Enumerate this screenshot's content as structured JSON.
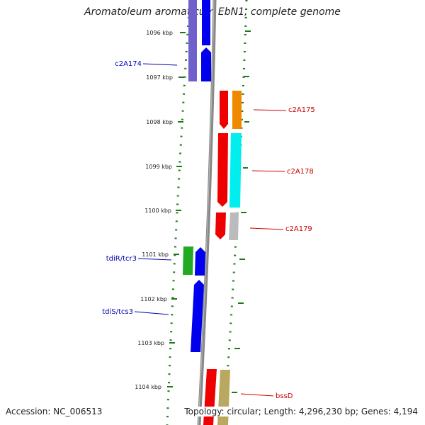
{
  "title": "Aromatoleum aromaticum EbN1, complete genome",
  "footer": {
    "accession": "Accession: NC_006513",
    "topology": "Topology: circular; Length: 4,296,230 bp; Genes: 4,194"
  },
  "ticks": [
    {
      "label": "1096 kbp"
    },
    {
      "label": "1097 kbp"
    },
    {
      "label": "1098 kbp"
    },
    {
      "label": "1099 kbp"
    },
    {
      "label": "1100 kbp"
    },
    {
      "label": "1101 kbp"
    },
    {
      "label": "1102 kbp"
    },
    {
      "label": "1103 kbp"
    },
    {
      "label": "1104 kbp"
    }
  ],
  "genes": [
    {
      "label": "c2A174",
      "color": "#0000cc"
    },
    {
      "label": "c2A175",
      "color": "#cc0000"
    },
    {
      "label": "c2A178",
      "color": "#cc0000"
    },
    {
      "label": "c2A179",
      "color": "#cc0000"
    },
    {
      "label": "tdiR/tcr3",
      "color": "#0000aa"
    },
    {
      "label": "tdiS/tcs3",
      "color": "#0000aa"
    },
    {
      "label": "bssD",
      "color": "#cc0000"
    }
  ],
  "colors": {
    "blue": "#0000ee",
    "purple": "#7060cc",
    "red": "#ee0000",
    "orange": "#ee8800",
    "cyan": "#00eeee",
    "grey": "#bbbbbb",
    "green": "#22aa22",
    "olive": "#b8a860",
    "dotted": "#1a7a1a",
    "backbone": "#888888"
  }
}
